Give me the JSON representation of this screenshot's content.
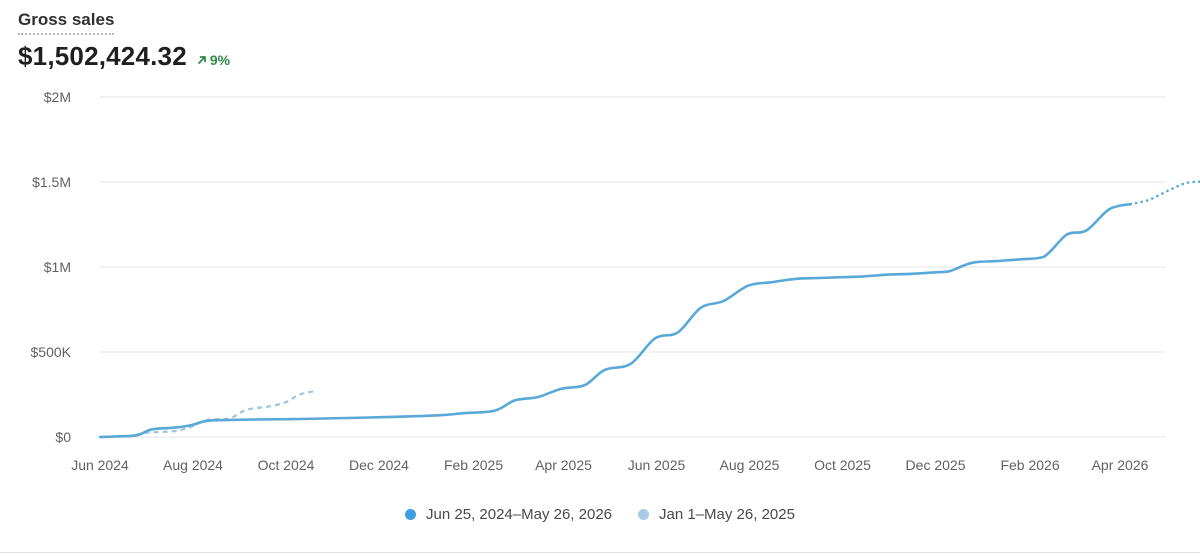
{
  "header": {
    "title": "Gross sales",
    "value": "$1,502,424.32",
    "delta": "9%",
    "delta_color": "#2e8b4a"
  },
  "chart_data": {
    "type": "line",
    "title": "Gross sales",
    "xlabel": "",
    "ylabel": "",
    "ylim": [
      0,
      2000000
    ],
    "xlim": [
      "2024-06-01",
      "2026-05-26"
    ],
    "y_ticks": [
      {
        "value": 0,
        "label": "$0"
      },
      {
        "value": 500000,
        "label": "$500K"
      },
      {
        "value": 1000000,
        "label": "$1M"
      },
      {
        "value": 1500000,
        "label": "$1.5M"
      },
      {
        "value": 2000000,
        "label": "$2M"
      }
    ],
    "x_ticks": [
      {
        "value": "2024-06-01",
        "label": "Jun 2024"
      },
      {
        "value": "2024-08-01",
        "label": "Aug 2024"
      },
      {
        "value": "2024-10-01",
        "label": "Oct 2024"
      },
      {
        "value": "2024-12-01",
        "label": "Dec 2024"
      },
      {
        "value": "2025-02-01",
        "label": "Feb 2025"
      },
      {
        "value": "2025-04-01",
        "label": "Apr 2025"
      },
      {
        "value": "2025-06-01",
        "label": "Jun 2025"
      },
      {
        "value": "2025-08-01",
        "label": "Aug 2025"
      },
      {
        "value": "2025-10-01",
        "label": "Oct 2025"
      },
      {
        "value": "2025-12-01",
        "label": "Dec 2025"
      },
      {
        "value": "2026-02-01",
        "label": "Feb 2026"
      },
      {
        "value": "2026-04-01",
        "label": "Apr 2026"
      }
    ],
    "grid": true,
    "legend_position": "bottom-center",
    "series": [
      {
        "name": "Jun 25, 2024–May 26, 2026",
        "color": "#58a8d8",
        "style": "solid",
        "points": [
          [
            "2024-06-01",
            0
          ],
          [
            "2024-06-10",
            3000
          ],
          [
            "2024-06-25",
            10000
          ],
          [
            "2024-07-05",
            45000
          ],
          [
            "2024-07-20",
            55000
          ],
          [
            "2024-07-31",
            70000
          ],
          [
            "2024-08-10",
            95000
          ],
          [
            "2024-08-25",
            100000
          ],
          [
            "2024-09-10",
            103000
          ],
          [
            "2024-10-10",
            106000
          ],
          [
            "2024-11-10",
            112000
          ],
          [
            "2024-12-10",
            118000
          ],
          [
            "2025-01-10",
            128000
          ],
          [
            "2025-01-25",
            140000
          ],
          [
            "2025-02-15",
            155000
          ],
          [
            "2025-02-28",
            215000
          ],
          [
            "2025-03-15",
            235000
          ],
          [
            "2025-03-31",
            285000
          ],
          [
            "2025-04-15",
            305000
          ],
          [
            "2025-04-28",
            395000
          ],
          [
            "2025-05-15",
            430000
          ],
          [
            "2025-05-31",
            580000
          ],
          [
            "2025-06-15",
            615000
          ],
          [
            "2025-06-30",
            760000
          ],
          [
            "2025-07-15",
            800000
          ],
          [
            "2025-07-31",
            890000
          ],
          [
            "2025-08-15",
            910000
          ],
          [
            "2025-08-31",
            930000
          ],
          [
            "2025-09-15",
            935000
          ],
          [
            "2025-09-30",
            940000
          ],
          [
            "2025-10-15",
            945000
          ],
          [
            "2025-10-31",
            955000
          ],
          [
            "2025-11-15",
            960000
          ],
          [
            "2025-11-30",
            968000
          ],
          [
            "2025-12-10",
            975000
          ],
          [
            "2025-12-25",
            1025000
          ],
          [
            "2026-01-10",
            1035000
          ],
          [
            "2026-01-25",
            1045000
          ],
          [
            "2026-02-10",
            1060000
          ],
          [
            "2026-02-25",
            1190000
          ],
          [
            "2026-03-10",
            1215000
          ],
          [
            "2026-03-25",
            1340000
          ],
          [
            "2026-04-08",
            1370000
          ]
        ]
      },
      {
        "name": "Jun 25, 2024–May 26, 2026 (projected)",
        "color": "#58a8d8",
        "style": "dotted",
        "points": [
          [
            "2026-04-08",
            1370000
          ],
          [
            "2026-04-20",
            1395000
          ],
          [
            "2026-05-05",
            1460000
          ],
          [
            "2026-05-15",
            1495000
          ],
          [
            "2026-05-26",
            1502424
          ]
        ]
      },
      {
        "name": "Jan 1–May 26, 2025",
        "color": "#9cc6e4",
        "style": "dashed",
        "points": [
          [
            "2024-06-01",
            0
          ],
          [
            "2024-06-20",
            5000
          ],
          [
            "2024-07-01",
            25000
          ],
          [
            "2024-07-20",
            35000
          ],
          [
            "2024-07-31",
            60000
          ],
          [
            "2024-08-10",
            100000
          ],
          [
            "2024-08-25",
            110000
          ],
          [
            "2024-09-05",
            160000
          ],
          [
            "2024-09-20",
            180000
          ],
          [
            "2024-10-01",
            205000
          ],
          [
            "2024-10-10",
            250000
          ],
          [
            "2024-10-20",
            270000
          ]
        ]
      }
    ]
  },
  "legend": [
    {
      "label": "Jun 25, 2024–May 26, 2026",
      "color": "#3e9ee0"
    },
    {
      "label": "Jan 1–May 26, 2025",
      "color": "#a6cbe6"
    }
  ]
}
